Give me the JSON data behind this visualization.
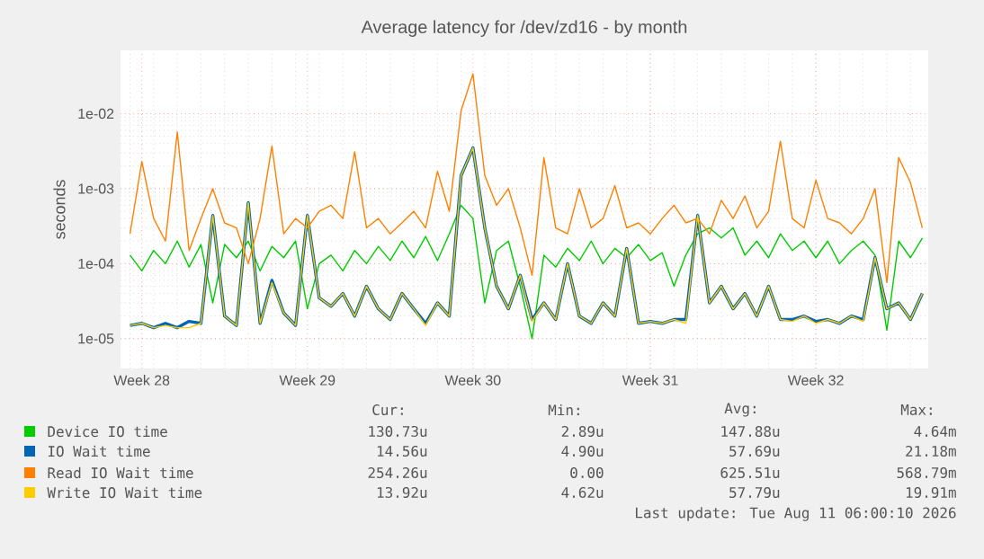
{
  "chart_data": {
    "type": "line",
    "title": "Average latency for /dev/zd16 - by month",
    "ylabel": "seconds",
    "log": "y",
    "grid": true,
    "legend": "bottom",
    "marker": "none",
    "line_style": "solid",
    "ylim": [
      4e-06,
      0.07
    ],
    "categories": [
      null,
      "Week 28",
      null,
      null,
      null,
      null,
      null,
      null,
      null,
      null,
      null,
      null,
      null,
      null,
      null,
      "Week 29",
      null,
      null,
      null,
      null,
      null,
      null,
      null,
      null,
      null,
      null,
      null,
      null,
      null,
      "Week 30",
      null,
      null,
      null,
      null,
      null,
      null,
      null,
      null,
      null,
      null,
      null,
      null,
      null,
      null,
      "Week 31",
      null,
      null,
      null,
      null,
      null,
      null,
      null,
      null,
      null,
      null,
      null,
      null,
      null,
      "Week 32",
      null,
      null,
      null,
      null,
      null,
      null,
      null,
      null,
      null
    ],
    "yticks": [
      {
        "value": 1e-05,
        "label": "1e-05"
      },
      {
        "value": 0.0001,
        "label": "1e-04"
      },
      {
        "value": 0.001,
        "label": "1e-03"
      },
      {
        "value": 0.01,
        "label": "1e-02"
      }
    ],
    "series": [
      {
        "name": "Device IO time",
        "color": "#00cc00",
        "values": [
          0.00013,
          8e-05,
          0.00015,
          0.0001,
          0.0002,
          9e-05,
          0.00018,
          3e-05,
          0.00018,
          0.00012,
          0.0002,
          8e-05,
          0.00017,
          0.00012,
          0.0002,
          2.5e-05,
          0.0001,
          0.00013,
          8e-05,
          0.00015,
          0.0001,
          0.00017,
          0.00011,
          0.0002,
          0.00012,
          0.00023,
          0.00011,
          0.00025,
          0.0006,
          0.0004,
          3e-05,
          0.00015,
          0.0002,
          5e-05,
          1e-05,
          0.00013,
          9e-05,
          0.00016,
          0.00011,
          0.0002,
          0.0001,
          0.00016,
          0.00012,
          0.00018,
          0.00011,
          0.00014,
          5e-05,
          0.00013,
          0.00025,
          0.0003,
          0.00022,
          0.0003,
          0.00013,
          0.0002,
          0.00012,
          0.00025,
          0.00015,
          0.0002,
          0.00012,
          0.0002,
          0.0001,
          0.00015,
          0.0002,
          0.00013,
          1.3e-05,
          0.0002,
          0.00012,
          0.00022
        ]
      },
      {
        "name": "IO Wait time",
        "color": "#0066b3",
        "values": [
          1.5e-05,
          1.6e-05,
          1.4e-05,
          1.6e-05,
          1.4e-05,
          1.7e-05,
          1.6e-05,
          0.00044,
          2e-05,
          1.5e-05,
          0.00065,
          1.6e-05,
          6e-05,
          2.2e-05,
          1.5e-05,
          0.00044,
          3.5e-05,
          2.7e-05,
          4e-05,
          2e-05,
          5e-05,
          2.5e-05,
          1.8e-05,
          4e-05,
          2.5e-05,
          1.6e-05,
          3e-05,
          2e-05,
          0.0015,
          0.0035,
          0.0003,
          5e-05,
          2.5e-05,
          7e-05,
          1.8e-05,
          3e-05,
          1.8e-05,
          0.0001,
          2e-05,
          1.6e-05,
          3e-05,
          2e-05,
          0.00016,
          1.6e-05,
          1.7e-05,
          1.6e-05,
          1.8e-05,
          1.8e-05,
          0.00044,
          3e-05,
          5e-05,
          2.5e-05,
          4e-05,
          2e-05,
          5e-05,
          1.8e-05,
          1.8e-05,
          2e-05,
          1.7e-05,
          1.8e-05,
          1.6e-05,
          2e-05,
          1.8e-05,
          0.00012,
          2.5e-05,
          3e-05,
          1.8e-05,
          4e-05
        ]
      },
      {
        "name": "Read IO Wait time",
        "color": "#ff8000",
        "values": [
          0.00025,
          0.0023,
          0.0004,
          0.0002,
          0.0057,
          0.00015,
          0.0004,
          0.001,
          0.00035,
          0.0003,
          0.0001,
          0.0004,
          0.0037,
          0.00025,
          0.0004,
          0.0003,
          0.0005,
          0.0006,
          0.0004,
          0.0031,
          0.0003,
          0.0004,
          0.00025,
          0.00035,
          0.0005,
          0.0003,
          0.0017,
          0.0005,
          0.011,
          0.034,
          0.0015,
          0.0006,
          0.001,
          0.0003,
          7e-05,
          0.0026,
          0.0003,
          0.00025,
          0.001,
          0.0003,
          0.0004,
          0.0011,
          0.0003,
          0.00035,
          0.00025,
          0.0004,
          0.0006,
          0.00035,
          0.0004,
          0.00025,
          0.0007,
          0.0004,
          0.0008,
          0.0003,
          0.0005,
          0.0043,
          0.0004,
          0.0003,
          0.0013,
          0.0004,
          0.00035,
          0.00025,
          0.0004,
          0.001,
          5.6e-05,
          0.0026,
          0.0012,
          0.0003
        ]
      },
      {
        "name": "Write IO Wait time",
        "color": "#ffcc00",
        "values": [
          1.5e-05,
          1.6e-05,
          1.4e-05,
          1.5e-05,
          1.4e-05,
          1.4e-05,
          1.6e-05,
          0.00044,
          2e-05,
          1.5e-05,
          0.00065,
          1.6e-05,
          5.6e-05,
          2.2e-05,
          1.5e-05,
          0.00044,
          3.5e-05,
          2.7e-05,
          4e-05,
          2e-05,
          5e-05,
          2.5e-05,
          1.8e-05,
          4e-05,
          2.5e-05,
          1.5e-05,
          3e-05,
          2e-05,
          0.0015,
          0.0035,
          0.0003,
          5e-05,
          2.5e-05,
          7e-05,
          1.7e-05,
          3e-05,
          1.8e-05,
          0.0001,
          2e-05,
          1.6e-05,
          3e-05,
          2e-05,
          0.00016,
          1.6e-05,
          1.7e-05,
          1.6e-05,
          1.8e-05,
          1.6e-05,
          0.00044,
          3e-05,
          5e-05,
          2.5e-05,
          4e-05,
          2e-05,
          5e-05,
          1.8e-05,
          1.7e-05,
          2e-05,
          1.6e-05,
          1.8e-05,
          1.6e-05,
          2e-05,
          1.7e-05,
          0.00012,
          2.5e-05,
          3e-05,
          1.8e-05,
          4e-05
        ]
      }
    ],
    "annotations": [
      "Cur:",
      "Min:",
      "Avg:",
      "Max:",
      "130.73u",
      "2.89u",
      "147.88u",
      "4.64m",
      "14.56u",
      "4.90u",
      "57.69u",
      "21.18m",
      "254.26u",
      "0.00",
      "625.51u",
      "568.79m",
      "13.92u",
      "4.62u",
      "57.79u",
      "19.91m",
      "Last update: Tue Aug 11 06:00:10 2026"
    ]
  }
}
